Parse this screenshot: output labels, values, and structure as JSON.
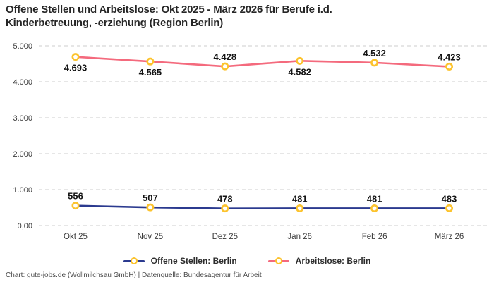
{
  "page": {
    "title_line1": "Offene Stellen und Arbeitslose: Okt 2025 - März 2026 für Berufe i.d.",
    "title_line2": "Kinderbetreuung, -erziehung (Region Berlin)",
    "footer": "Chart: gute-jobs.de (Wollmilchsau GmbH) | Datenquelle: Bundesagentur für Arbeit"
  },
  "colors": {
    "grid": "#cccccc",
    "axis_text": "#3a3a3a",
    "data_label_text": "#141414",
    "marker_ring": "#fcc32d",
    "marker_fill": "#ffffff"
  },
  "chart_data": {
    "type": "line",
    "title": "Offene Stellen und Arbeitslose: Okt 2025 - März 2026 für Berufe i.d. Kinderbetreuung, -erziehung (Region Berlin)",
    "categories": [
      "Okt 25",
      "Nov 25",
      "Dez 25",
      "Jan 26",
      "Feb 26",
      "März 26"
    ],
    "ylim": [
      0,
      5000
    ],
    "grid": "horizontal-dashed",
    "legend_position": "bottom",
    "y_ticks": [
      {
        "value": 5000,
        "label": "5.000"
      },
      {
        "value": 4000,
        "label": "4.000"
      },
      {
        "value": 3000,
        "label": "3.000"
      },
      {
        "value": 2000,
        "label": "2.000"
      },
      {
        "value": 1000,
        "label": "1.000"
      },
      {
        "value": 0,
        "label": "0,00"
      }
    ],
    "series": [
      {
        "name": "Offene Stellen: Berlin",
        "color": "#2b3a8f",
        "values": [
          556,
          507,
          478,
          481,
          481,
          483
        ],
        "labels": [
          "556",
          "507",
          "478",
          "481",
          "481",
          "483"
        ],
        "label_placement": [
          "above",
          "above",
          "above",
          "above",
          "above",
          "above"
        ]
      },
      {
        "name": "Arbeitslose: Berlin",
        "color": "#f46a7d",
        "values": [
          4693,
          4565,
          4428,
          4582,
          4532,
          4423
        ],
        "labels": [
          "4.693",
          "4.565",
          "4.428",
          "4.582",
          "4.532",
          "4.423"
        ],
        "label_placement": [
          "below",
          "below",
          "above",
          "below",
          "above",
          "above"
        ]
      }
    ]
  }
}
